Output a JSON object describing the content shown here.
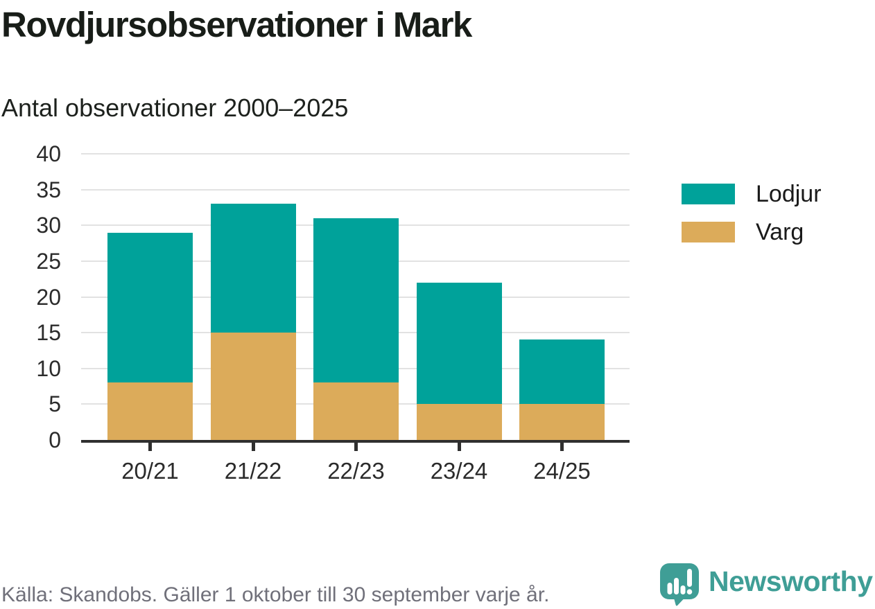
{
  "title": "Rovdjursobservationer i Mark",
  "subtitle": "Antal observationer 2000–2025",
  "legend": [
    {
      "label": "Lodjur",
      "color": "#00a29a"
    },
    {
      "label": "Varg",
      "color": "#dcab5a"
    }
  ],
  "footer": {
    "source": "Källa: Skandobs. Gäller 1 oktober till 30 september varje år.",
    "brand": "Newsworthy",
    "brand_color": "#3f9e96"
  },
  "chart_data": {
    "type": "bar",
    "stacked": true,
    "title": "Rovdjursobservationer i Mark",
    "subtitle": "Antal observationer 2000–2025",
    "categories": [
      "20/21",
      "21/22",
      "22/23",
      "23/24",
      "24/25"
    ],
    "series": [
      {
        "name": "Varg",
        "color": "#dcab5a",
        "values": [
          8,
          15,
          8,
          5,
          5
        ]
      },
      {
        "name": "Lodjur",
        "color": "#00a29a",
        "values": [
          21,
          18,
          23,
          17,
          9
        ]
      }
    ],
    "stack_totals": [
      29,
      33,
      31,
      22,
      14
    ],
    "ylim": [
      0,
      40
    ],
    "yticks": [
      0,
      5,
      10,
      15,
      20,
      25,
      30,
      35,
      40
    ],
    "grid": true,
    "legend_position": "right",
    "colors": {
      "grid": "#e2e2e2",
      "axis": "#2f2f2f",
      "tick_label": "#2b2b2b"
    }
  }
}
